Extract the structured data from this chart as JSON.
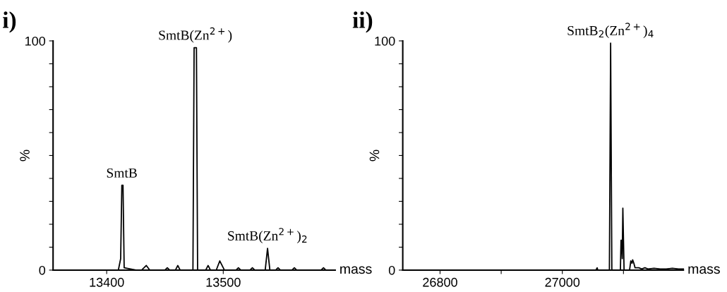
{
  "chart_data": [
    {
      "type": "line",
      "title": "i)",
      "xlabel": "mass",
      "ylabel": "%",
      "series": [
        {
          "color": "#000000",
          "x": [
            13354,
            13410,
            13412,
            13413,
            13414,
            13415,
            13425,
            13430,
            13434,
            13437,
            13450,
            13452,
            13454,
            13459,
            13461,
            13463,
            13474,
            13475,
            13477,
            13478,
            13485,
            13487,
            13489,
            13494,
            13497,
            13501,
            13511,
            13513,
            13515,
            13523,
            13525,
            13527,
            13536,
            13538,
            13540,
            13545,
            13547,
            13549,
            13559,
            13561,
            13563,
            13584,
            13586,
            13588,
            13596
          ],
          "values": [
            0,
            0,
            5,
            37,
            37,
            1,
            0,
            0,
            2,
            0,
            0,
            1,
            0,
            0,
            2,
            0,
            0,
            97,
            97,
            0,
            0,
            2,
            0,
            0,
            4,
            0,
            0,
            1,
            0,
            0,
            1,
            0,
            0,
            9.5,
            0,
            0,
            1,
            0,
            0,
            1,
            0,
            0,
            1,
            0,
            0
          ]
        }
      ],
      "xlim": [
        13354,
        13596
      ],
      "xticks": [
        13400,
        13500
      ],
      "ylim": [
        0,
        100
      ],
      "yticks": [
        0,
        {
          "value": 10,
          "label": null
        },
        {
          "value": 20,
          "label": null
        },
        {
          "value": 30,
          "label": null
        },
        {
          "value": 40,
          "label": null
        },
        {
          "value": 50,
          "label": null
        },
        {
          "value": 60,
          "label": null
        },
        {
          "value": 70,
          "label": null
        },
        {
          "value": 80,
          "label": null
        },
        {
          "value": 90,
          "label": null
        },
        100
      ],
      "annotations": [
        {
          "text": "SmtB",
          "x": 13413,
          "y": 37
        },
        {
          "text": "SmtB(Zn$^{2+}$)",
          "x": 13476,
          "y": 97
        },
        {
          "text": "SmtB(Zn$^{2+}$)$_{2}$",
          "x": 13538,
          "y": 9.5
        }
      ],
      "grid": false,
      "legend": false
    },
    {
      "type": "line",
      "title": "ii)",
      "xlabel": "mass",
      "ylabel": "%",
      "series": [
        {
          "color": "#000000",
          "x": [
            26739,
            27055,
            27057,
            27058,
            27077,
            27079,
            27081,
            27095,
            27096,
            27097,
            27098,
            27099,
            27101,
            27110,
            27112,
            27114,
            27115,
            27117,
            27119,
            27125,
            27130,
            27135,
            27140,
            27150,
            27160,
            27170,
            27180,
            27190,
            27198
          ],
          "values": [
            0,
            0,
            1,
            0,
            0,
            99,
            0,
            0,
            13,
            13,
            5,
            27,
            0,
            0,
            4,
            3,
            4.5,
            3,
            1,
            1,
            0.5,
            1,
            0.5,
            0.8,
            0.5,
            0.5,
            0.8,
            0.5,
            0.5
          ]
        }
      ],
      "xlim": [
        26739,
        27198
      ],
      "xticks": [
        26800,
        {
          "value": 26900,
          "label": null
        },
        27000,
        {
          "value": 27100,
          "label": null
        }
      ],
      "ylim": [
        0,
        100
      ],
      "yticks": [
        0,
        {
          "value": 10,
          "label": null
        },
        {
          "value": 20,
          "label": null
        },
        {
          "value": 30,
          "label": null
        },
        {
          "value": 40,
          "label": null
        },
        {
          "value": 50,
          "label": null
        },
        {
          "value": 60,
          "label": null
        },
        {
          "value": 70,
          "label": null
        },
        {
          "value": 80,
          "label": null
        },
        {
          "value": 90,
          "label": null
        },
        100
      ],
      "annotations": [
        {
          "text": "SmtB$_{2}$(Zn$^{2+}$)$_{4}$",
          "x": 27079,
          "y": 99
        }
      ],
      "grid": false,
      "legend": false
    }
  ]
}
